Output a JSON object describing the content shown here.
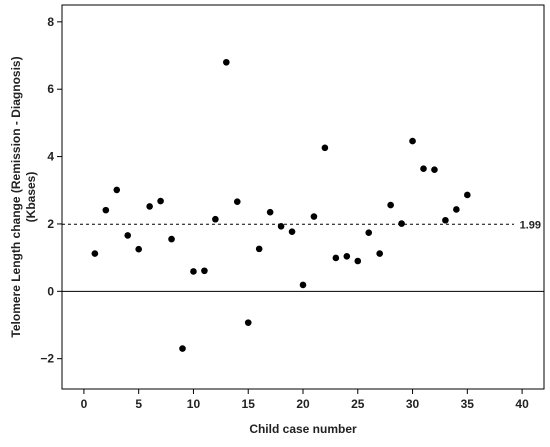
{
  "chart_data": {
    "type": "scatter",
    "title": "",
    "xlabel": "Child case number",
    "ylabel_lines": [
      "Telomere Length change (Remission - Diagnosis)",
      "(Kbases)"
    ],
    "xlim": [
      -2,
      42
    ],
    "ylim": [
      -2.9,
      8.5
    ],
    "xticks": [
      0,
      5,
      10,
      15,
      20,
      25,
      30,
      35,
      40
    ],
    "yticks": [
      -2,
      0,
      2,
      4,
      6,
      8
    ],
    "ytick_labels": [
      "−2",
      "0",
      "2",
      "4",
      "6",
      "8"
    ],
    "grid": false,
    "zero_line": 0,
    "reference_line": {
      "value": 1.99,
      "label": "1.99",
      "style": "dashed"
    },
    "colors": {
      "points": "#000000",
      "axis": "#000000"
    },
    "points": [
      {
        "x": 1,
        "y": 1.12
      },
      {
        "x": 2,
        "y": 2.41
      },
      {
        "x": 3,
        "y": 3.01
      },
      {
        "x": 4,
        "y": 1.66
      },
      {
        "x": 5,
        "y": 1.25
      },
      {
        "x": 6,
        "y": 2.52
      },
      {
        "x": 7,
        "y": 2.68
      },
      {
        "x": 8,
        "y": 1.55
      },
      {
        "x": 9,
        "y": -1.7
      },
      {
        "x": 10,
        "y": 0.59
      },
      {
        "x": 11,
        "y": 0.61
      },
      {
        "x": 12,
        "y": 2.14
      },
      {
        "x": 13,
        "y": 6.8
      },
      {
        "x": 14,
        "y": 2.66
      },
      {
        "x": 15,
        "y": -0.93
      },
      {
        "x": 16,
        "y": 1.26
      },
      {
        "x": 17,
        "y": 2.35
      },
      {
        "x": 18,
        "y": 1.93
      },
      {
        "x": 19,
        "y": 1.77
      },
      {
        "x": 20,
        "y": 0.19
      },
      {
        "x": 21,
        "y": 2.22
      },
      {
        "x": 22,
        "y": 4.26
      },
      {
        "x": 23,
        "y": 0.99
      },
      {
        "x": 24,
        "y": 1.04
      },
      {
        "x": 25,
        "y": 0.9
      },
      {
        "x": 26,
        "y": 1.74
      },
      {
        "x": 27,
        "y": 1.12
      },
      {
        "x": 28,
        "y": 2.56
      },
      {
        "x": 29,
        "y": 2.01
      },
      {
        "x": 30,
        "y": 4.46
      },
      {
        "x": 31,
        "y": 3.64
      },
      {
        "x": 32,
        "y": 3.61
      },
      {
        "x": 33,
        "y": 2.11
      },
      {
        "x": 34,
        "y": 2.43
      },
      {
        "x": 35,
        "y": 2.86
      }
    ]
  }
}
